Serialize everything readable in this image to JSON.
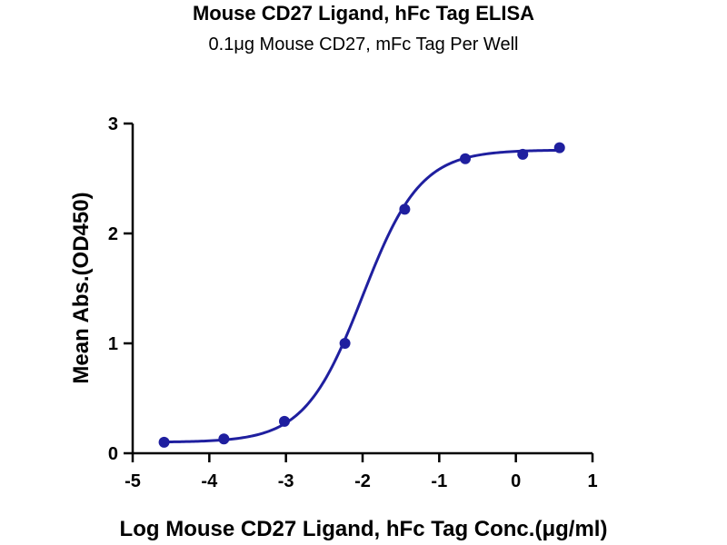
{
  "chart_data": {
    "type": "scatter",
    "title": "Mouse CD27 Ligand, hFc Tag ELISA",
    "subtitle": "0.1μg Mouse CD27, mFc Tag Per Well",
    "xlabel": "Log Mouse CD27 Ligand, hFc Tag Conc.(μg/ml)",
    "ylabel": "Mean Abs.(OD450)",
    "xlim": [
      -5,
      1
    ],
    "ylim": [
      0,
      3
    ],
    "xticks": [
      -5,
      -4,
      -3,
      -2,
      -1,
      0,
      1
    ],
    "yticks": [
      0,
      1,
      2,
      3
    ],
    "grid": false,
    "series": [
      {
        "x": [
          -4.59,
          -3.81,
          -3.02,
          -2.23,
          -1.45,
          -0.66,
          0.09,
          0.57
        ],
        "y": [
          0.1,
          0.13,
          0.29,
          1.0,
          2.22,
          2.68,
          2.72,
          2.78
        ]
      }
    ],
    "fit_curve": {
      "type": "4PL sigmoid",
      "bottom": 0.1,
      "top": 2.76,
      "log_ec50": -2.0,
      "hill_slope": 1.15
    },
    "colors": {
      "series": "#1f1f9f"
    }
  }
}
